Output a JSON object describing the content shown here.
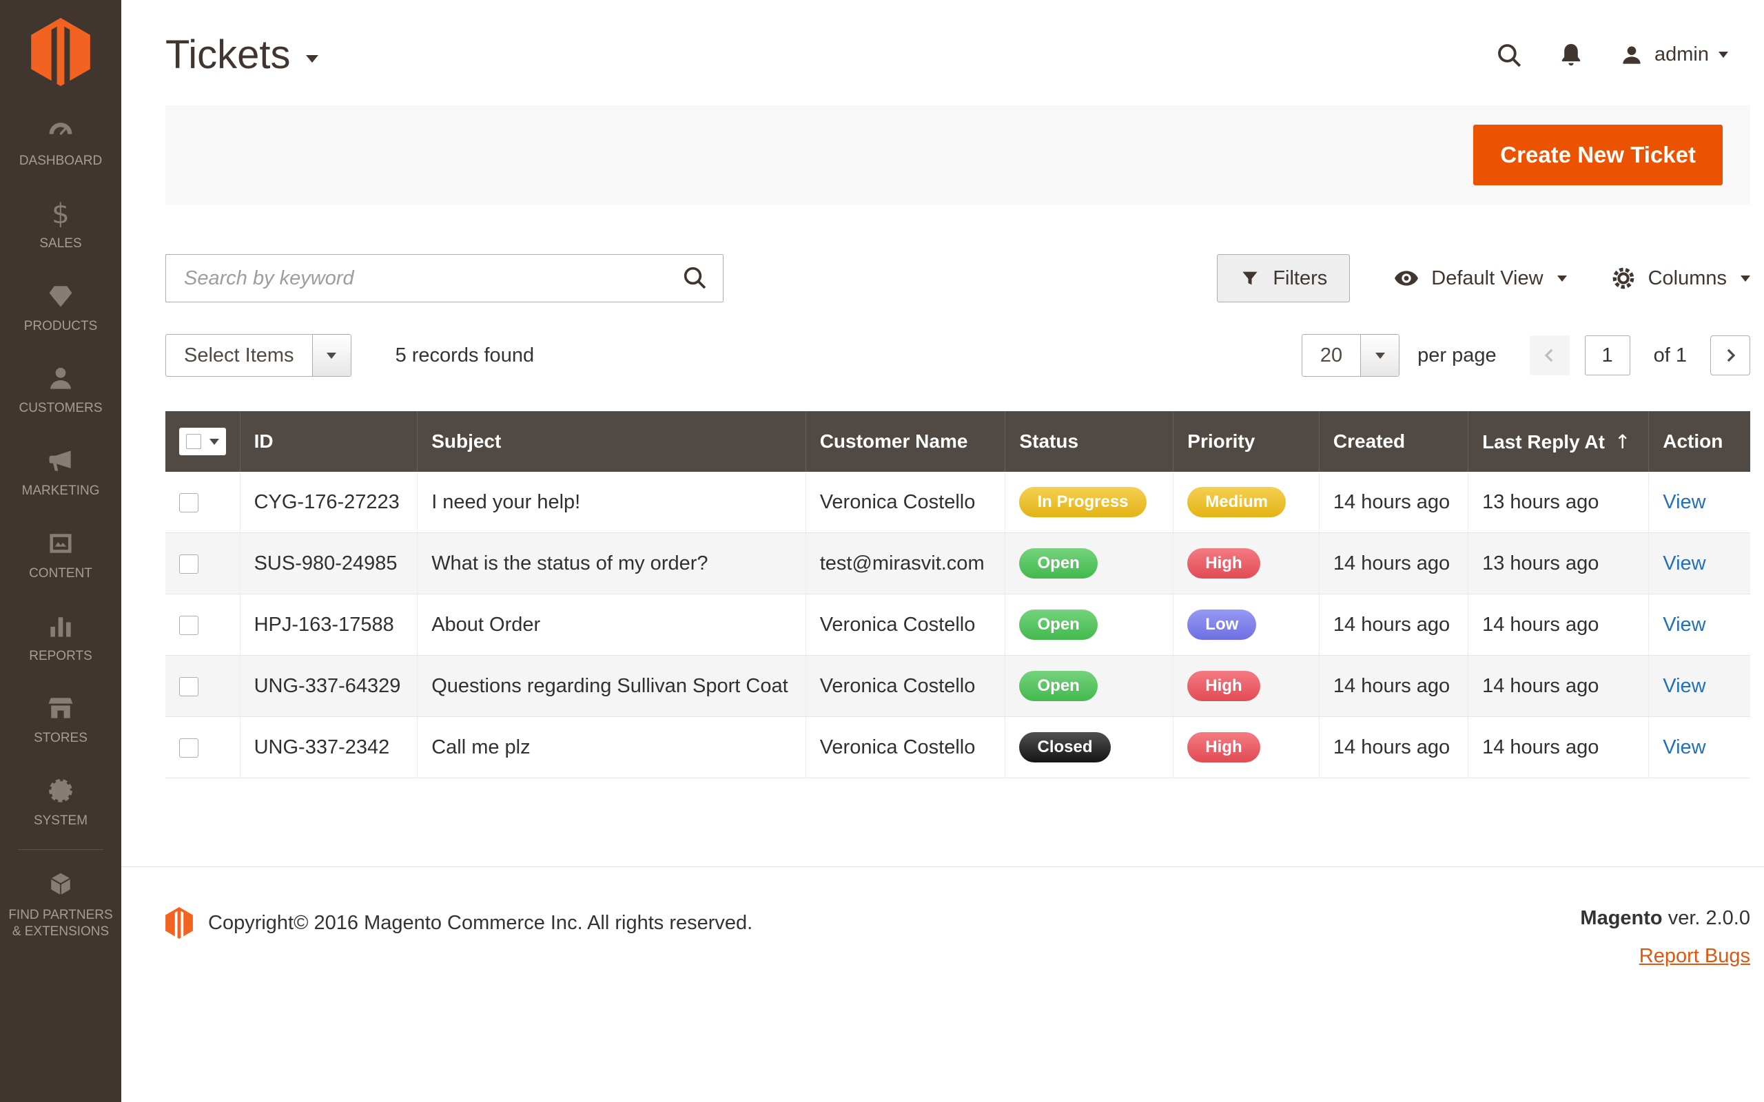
{
  "colors": {
    "accent": "#eb5202",
    "sidebar_bg": "#41362f",
    "table_header_bg": "#514943",
    "status_in_progress": "#f1bf17",
    "status_open": "#47c452",
    "status_closed": "#161616",
    "priority_medium": "#f1bf17",
    "priority_high": "#f04f59",
    "priority_low": "#7477ef",
    "link": "#2270b7"
  },
  "sidebar": {
    "items": [
      {
        "key": "dashboard",
        "icon": "dashboard-icon",
        "label": "DASHBOARD"
      },
      {
        "key": "sales",
        "icon": "sales-icon",
        "label": "SALES"
      },
      {
        "key": "products",
        "icon": "products-icon",
        "label": "PRODUCTS"
      },
      {
        "key": "customers",
        "icon": "customers-icon",
        "label": "CUSTOMERS"
      },
      {
        "key": "marketing",
        "icon": "marketing-icon",
        "label": "MARKETING"
      },
      {
        "key": "content",
        "icon": "content-icon",
        "label": "CONTENT"
      },
      {
        "key": "reports",
        "icon": "reports-icon",
        "label": "REPORTS"
      },
      {
        "key": "stores",
        "icon": "stores-icon",
        "label": "STORES"
      },
      {
        "key": "system",
        "icon": "system-icon",
        "label": "SYSTEM"
      },
      {
        "key": "find-partners",
        "icon": "extensions-icon",
        "label": "FIND PARTNERS & EXTENSIONS"
      }
    ]
  },
  "header": {
    "title": "Tickets",
    "user_name": "admin",
    "icons": [
      "search-icon",
      "notifications-icon",
      "user-icon"
    ]
  },
  "actions": {
    "create_new_ticket": "Create New Ticket"
  },
  "toolbar": {
    "search_placeholder": "Search by keyword",
    "filters": "Filters",
    "default_view": "Default View",
    "columns": "Columns"
  },
  "controls": {
    "select_items": "Select Items",
    "records_found": "5 records found",
    "per_page": "20",
    "per_page_label": "per page",
    "current_page": "1",
    "total_pages": "of 1"
  },
  "table": {
    "columns": [
      "ID",
      "Subject",
      "Customer Name",
      "Status",
      "Priority",
      "Created",
      "Last Reply At",
      "Action"
    ],
    "sort_column": "Last Reply At",
    "sort_direction": "asc",
    "sort_indicator": "↑",
    "rows": [
      {
        "id": "CYG-176-27223",
        "subject": "I need your help!",
        "customer": "Veronica Costello",
        "status": "In Progress",
        "status_color": "#f1bf17",
        "priority": "Medium",
        "priority_color": "#f1bf17",
        "created": "14 hours ago",
        "last_reply": "13 hours ago",
        "action": "View"
      },
      {
        "id": "SUS-980-24985",
        "subject": "What is the status of my order?",
        "customer": "test@mirasvit.com",
        "status": "Open",
        "status_color": "#47c452",
        "priority": "High",
        "priority_color": "#f04f59",
        "created": "14 hours ago",
        "last_reply": "13 hours ago",
        "action": "View"
      },
      {
        "id": "HPJ-163-17588",
        "subject": "About Order",
        "customer": "Veronica Costello",
        "status": "Open",
        "status_color": "#47c452",
        "priority": "Low",
        "priority_color": "#7477ef",
        "created": "14 hours ago",
        "last_reply": "14 hours ago",
        "action": "View"
      },
      {
        "id": "UNG-337-64329",
        "subject": "Questions regarding Sullivan Sport Coat",
        "customer": "Veronica Costello",
        "status": "Open",
        "status_color": "#47c452",
        "priority": "High",
        "priority_color": "#f04f59",
        "created": "14 hours ago",
        "last_reply": "14 hours ago",
        "action": "View"
      },
      {
        "id": "UNG-337-2342",
        "subject": "Call me plz",
        "customer": "Veronica Costello",
        "status": "Closed",
        "status_color": "#161616",
        "priority": "High",
        "priority_color": "#f04f59",
        "created": "14 hours ago",
        "last_reply": "14 hours ago",
        "action": "View"
      }
    ]
  },
  "footer": {
    "copyright": "Copyright© 2016 Magento Commerce Inc. All rights reserved.",
    "brand": "Magento",
    "version": " ver. 2.0.0",
    "report_bugs": "Report Bugs"
  }
}
